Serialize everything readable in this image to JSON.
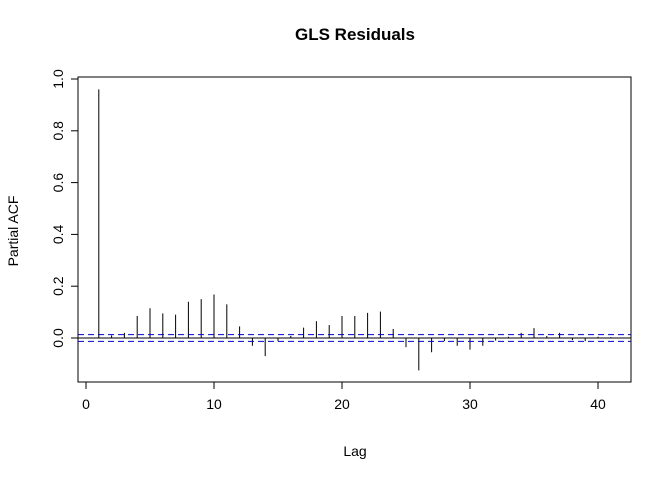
{
  "chart_data": {
    "type": "bar",
    "title": "GLS Residuals",
    "xlabel": "Lag",
    "ylabel": "Partial ACF",
    "xlim": [
      0,
      42.5
    ],
    "ylim": [
      -0.17,
      1.0
    ],
    "x_ticks": [
      0,
      10,
      20,
      30,
      40
    ],
    "y_ticks": [
      0.0,
      0.2,
      0.4,
      0.6,
      0.8,
      1.0
    ],
    "y_tick_labels": [
      "0.0",
      "0.2",
      "0.4",
      "0.6",
      "0.8",
      "1.0"
    ],
    "confidence_band": 0.013,
    "band_color": "#0000cc",
    "grid": false,
    "lags": [
      1,
      2,
      3,
      4,
      5,
      6,
      7,
      8,
      9,
      10,
      11,
      12,
      13,
      14,
      15,
      16,
      17,
      18,
      19,
      20,
      21,
      22,
      23,
      24,
      25,
      26,
      27,
      28,
      29,
      30,
      31,
      32,
      33,
      34,
      35,
      36,
      37,
      38,
      39,
      40,
      41
    ],
    "values": [
      0.96,
      0.01,
      0.02,
      0.085,
      0.115,
      0.095,
      0.09,
      0.14,
      0.15,
      0.168,
      0.13,
      0.045,
      -0.03,
      -0.07,
      -0.012,
      0.008,
      0.04,
      0.065,
      0.05,
      0.085,
      0.085,
      0.097,
      0.102,
      0.035,
      -0.035,
      -0.125,
      -0.055,
      -0.012,
      -0.03,
      -0.045,
      -0.03,
      -0.01,
      0.005,
      0.02,
      0.038,
      0.008,
      0.02,
      -0.008,
      -0.012,
      0.005,
      0.003
    ]
  }
}
